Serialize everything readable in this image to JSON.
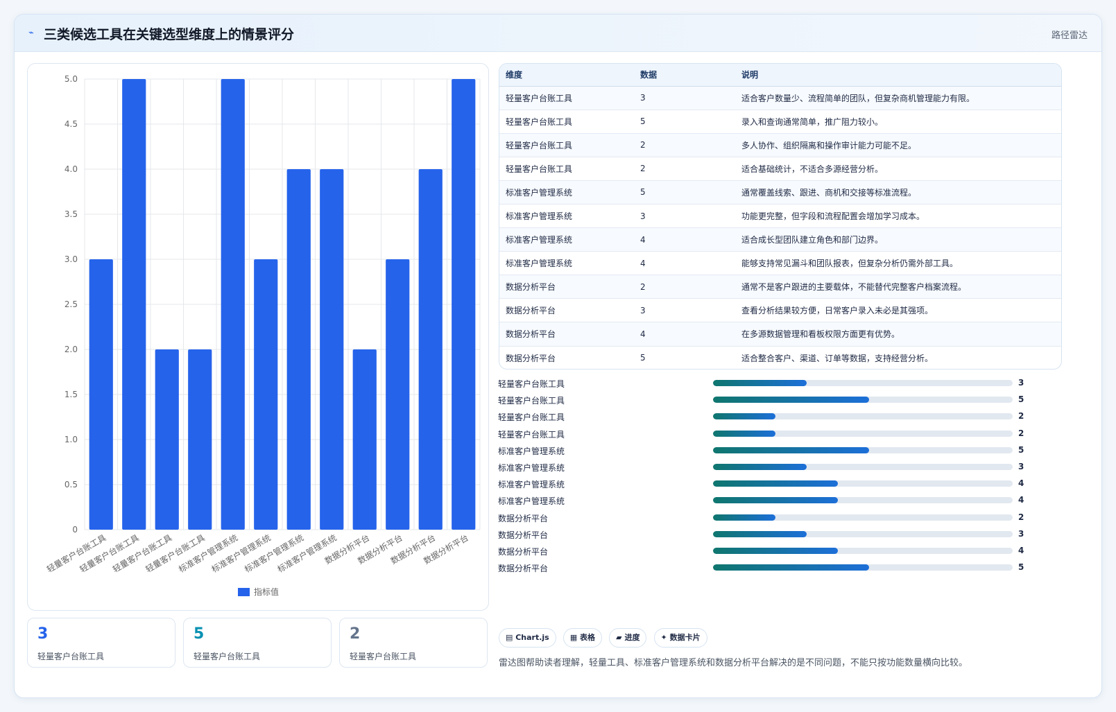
{
  "header": {
    "icon": "wave-icon",
    "title": "三类候选工具在关键选型维度上的情景评分",
    "tag": "路径雷达"
  },
  "colors": {
    "bar": "#2563eb",
    "progress_start": "#0f766e",
    "progress_end": "#1d6fd8",
    "stat_colors": [
      "#2563eb",
      "#0891b2",
      "#64748b"
    ]
  },
  "chart_data": {
    "type": "bar",
    "categories": [
      "轻量客户台账工具",
      "轻量客户台账工具",
      "轻量客户台账工具",
      "轻量客户台账工具",
      "标准客户管理系统",
      "标准客户管理系统",
      "标准客户管理系统",
      "标准客户管理系统",
      "数据分析平台",
      "数据分析平台",
      "数据分析平台",
      "数据分析平台"
    ],
    "series": [
      {
        "name": "指标值",
        "values": [
          3,
          5,
          2,
          2,
          5,
          3,
          4,
          4,
          2,
          3,
          4,
          5
        ]
      }
    ],
    "ylim": [
      0,
      5
    ],
    "yticks": [
      "0",
      "0.5",
      "1.0",
      "1.5",
      "2.0",
      "2.5",
      "3.0",
      "3.5",
      "4.0",
      "4.5",
      "5.0"
    ],
    "grid": true,
    "legend": "bottom"
  },
  "table": {
    "headers": [
      "维度",
      "数据",
      "说明"
    ],
    "rows": [
      [
        "轻量客户台账工具",
        "3",
        "适合客户数量少、流程简单的团队，但复杂商机管理能力有限。"
      ],
      [
        "轻量客户台账工具",
        "5",
        "录入和查询通常简单，推广阻力较小。"
      ],
      [
        "轻量客户台账工具",
        "2",
        "多人协作、组织隔离和操作审计能力可能不足。"
      ],
      [
        "轻量客户台账工具",
        "2",
        "适合基础统计，不适合多源经营分析。"
      ],
      [
        "标准客户管理系统",
        "5",
        "通常覆盖线索、跟进、商机和交接等标准流程。"
      ],
      [
        "标准客户管理系统",
        "3",
        "功能更完整，但字段和流程配置会增加学习成本。"
      ],
      [
        "标准客户管理系统",
        "4",
        "适合成长型团队建立角色和部门边界。"
      ],
      [
        "标准客户管理系统",
        "4",
        "能够支持常见漏斗和团队报表，但复杂分析仍需外部工具。"
      ],
      [
        "数据分析平台",
        "2",
        "通常不是客户跟进的主要载体，不能替代完整客户档案流程。"
      ],
      [
        "数据分析平台",
        "3",
        "查看分析结果较方便，日常客户录入未必是其强项。"
      ],
      [
        "数据分析平台",
        "4",
        "在多源数据管理和看板权限方面更有优势。"
      ],
      [
        "数据分析平台",
        "5",
        "适合整合客户、渠道、订单等数据，支持经营分析。"
      ]
    ]
  },
  "progress": {
    "max": 5,
    "items": [
      {
        "label": "轻量客户台账工具",
        "value": 3
      },
      {
        "label": "轻量客户台账工具",
        "value": 5
      },
      {
        "label": "轻量客户台账工具",
        "value": 2
      },
      {
        "label": "轻量客户台账工具",
        "value": 2
      },
      {
        "label": "标准客户管理系统",
        "value": 5
      },
      {
        "label": "标准客户管理系统",
        "value": 3
      },
      {
        "label": "标准客户管理系统",
        "value": 4
      },
      {
        "label": "标准客户管理系统",
        "value": 4
      },
      {
        "label": "数据分析平台",
        "value": 2
      },
      {
        "label": "数据分析平台",
        "value": 3
      },
      {
        "label": "数据分析平台",
        "value": 4
      },
      {
        "label": "数据分析平台",
        "value": 5
      }
    ]
  },
  "stats": [
    {
      "value": "3",
      "label": "轻量客户台账工具"
    },
    {
      "value": "5",
      "label": "轻量客户台账工具"
    },
    {
      "value": "2",
      "label": "轻量客户台账工具"
    }
  ],
  "chips": [
    "▤ Chart.js",
    "▦ 表格",
    "▰ 进度",
    "✦ 数据卡片"
  ],
  "note": "雷达图帮助读者理解，轻量工具、标准客户管理系统和数据分析平台解决的是不同问题，不能只按功能数量横向比较。"
}
